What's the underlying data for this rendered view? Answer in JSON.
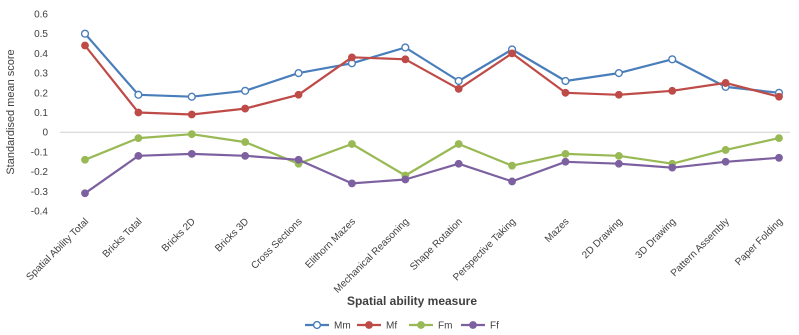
{
  "chart_data": {
    "type": "line",
    "title": "",
    "xlabel": "Spatial ability measure",
    "ylabel": "Standardised mean score",
    "ylim": [
      -0.4,
      0.6
    ],
    "yticks": [
      0.6,
      0.5,
      0.4,
      0.3,
      0.2,
      0.1,
      0,
      -0.1,
      -0.2,
      -0.3,
      -0.4
    ],
    "grid": false,
    "legend_position": "bottom",
    "categories": [
      "Spatial Ability Total",
      "Bricks Total",
      "Bricks 2D",
      "Bricks 3D",
      "Cross Sections",
      "Elithorn Mazes",
      "Mechanical Reasoning",
      "Shape Rotation",
      "Perspective Taking",
      "Mazes",
      "2D Drawing",
      "3D Drawing",
      "Pattern Assembly",
      "Paper Folding"
    ],
    "series": [
      {
        "name": "Mm",
        "color": "#4a7ebb",
        "marker": "open-circle",
        "values": [
          0.5,
          0.19,
          0.18,
          0.21,
          0.3,
          0.35,
          0.43,
          0.26,
          0.42,
          0.26,
          0.3,
          0.37,
          0.23,
          0.2
        ]
      },
      {
        "name": "Mf",
        "color": "#be4b48",
        "marker": "filled-circle",
        "values": [
          0.44,
          0.1,
          0.09,
          0.12,
          0.19,
          0.38,
          0.37,
          0.22,
          0.4,
          0.2,
          0.19,
          0.21,
          0.25,
          0.18
        ]
      },
      {
        "name": "Fm",
        "color": "#98b954",
        "marker": "filled-circle",
        "values": [
          -0.14,
          -0.03,
          -0.01,
          -0.05,
          -0.16,
          -0.06,
          -0.22,
          -0.06,
          -0.17,
          -0.11,
          -0.12,
          -0.16,
          -0.09,
          -0.03
        ]
      },
      {
        "name": "Ff",
        "color": "#7d60a0",
        "marker": "filled-circle",
        "values": [
          -0.31,
          -0.12,
          -0.11,
          -0.12,
          -0.14,
          -0.26,
          -0.24,
          -0.16,
          -0.25,
          -0.15,
          -0.16,
          -0.18,
          -0.15,
          -0.13
        ]
      }
    ]
  }
}
